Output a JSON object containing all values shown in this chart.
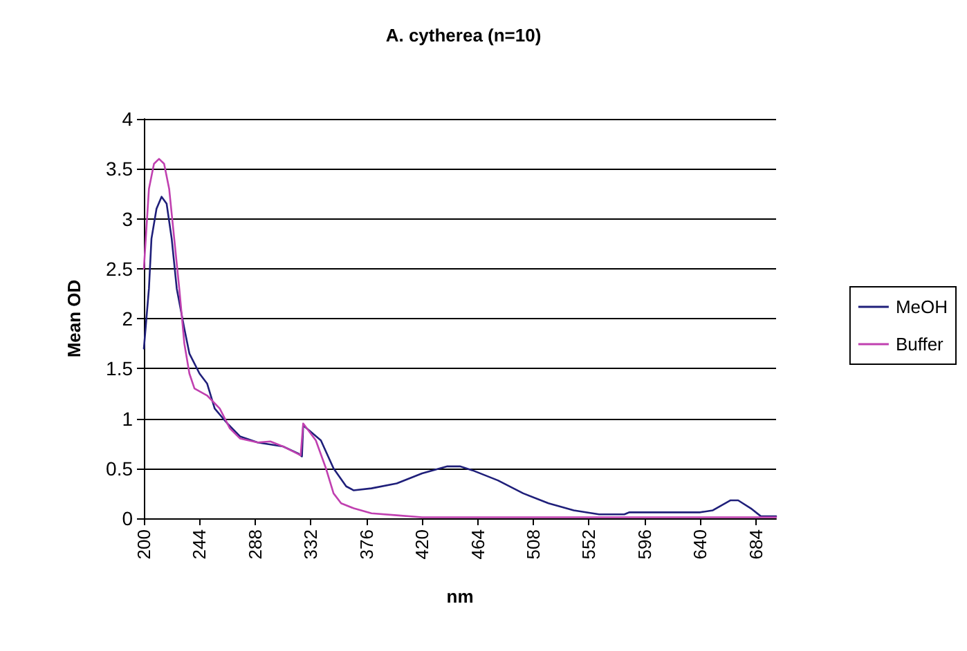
{
  "chart_data": {
    "type": "line",
    "title": "A. cytherea (n=10)",
    "xlabel": "nm",
    "ylabel": "Mean OD",
    "xlim": [
      200,
      700
    ],
    "xticks": [
      200,
      244,
      288,
      332,
      376,
      420,
      464,
      508,
      552,
      596,
      640,
      684
    ],
    "ylim": [
      0,
      4
    ],
    "yticks": [
      0,
      0.5,
      1,
      1.5,
      2,
      2.5,
      3,
      3.5,
      4
    ],
    "grid": "y",
    "legend": "right",
    "marker": "none",
    "line_style": "solid",
    "series": [
      {
        "name": "MeOH",
        "color": "#1f1f7a",
        "x": [
          200,
          204,
          206,
          210,
          214,
          218,
          222,
          226,
          232,
          236,
          244,
          250,
          256,
          266,
          276,
          290,
          310,
          322,
          325,
          326,
          340,
          350,
          360,
          366,
          380,
          400,
          420,
          440,
          450,
          460,
          480,
          500,
          520,
          540,
          560,
          580,
          584,
          640,
          650,
          664,
          670,
          680,
          688,
          700
        ],
        "values": [
          1.7,
          2.3,
          2.8,
          3.1,
          3.22,
          3.15,
          2.8,
          2.3,
          1.9,
          1.65,
          1.45,
          1.35,
          1.1,
          0.95,
          0.82,
          0.76,
          0.72,
          0.65,
          0.62,
          0.93,
          0.78,
          0.5,
          0.32,
          0.28,
          0.3,
          0.35,
          0.45,
          0.52,
          0.52,
          0.48,
          0.38,
          0.25,
          0.15,
          0.08,
          0.04,
          0.04,
          0.06,
          0.06,
          0.08,
          0.18,
          0.18,
          0.1,
          0.02,
          0.02
        ]
      },
      {
        "name": "Buffer",
        "color": "#c040b0",
        "x": [
          200,
          204,
          208,
          212,
          216,
          220,
          224,
          228,
          232,
          236,
          240,
          250,
          260,
          268,
          276,
          290,
          300,
          310,
          324,
          326,
          336,
          344,
          350,
          356,
          366,
          380,
          400,
          420,
          500,
          600,
          700
        ],
        "values": [
          2.5,
          3.3,
          3.55,
          3.6,
          3.55,
          3.3,
          2.8,
          2.3,
          1.75,
          1.45,
          1.3,
          1.23,
          1.1,
          0.9,
          0.8,
          0.76,
          0.77,
          0.72,
          0.63,
          0.95,
          0.78,
          0.5,
          0.25,
          0.15,
          0.1,
          0.05,
          0.03,
          0.01,
          0.01,
          0.01,
          0.01
        ]
      }
    ]
  }
}
